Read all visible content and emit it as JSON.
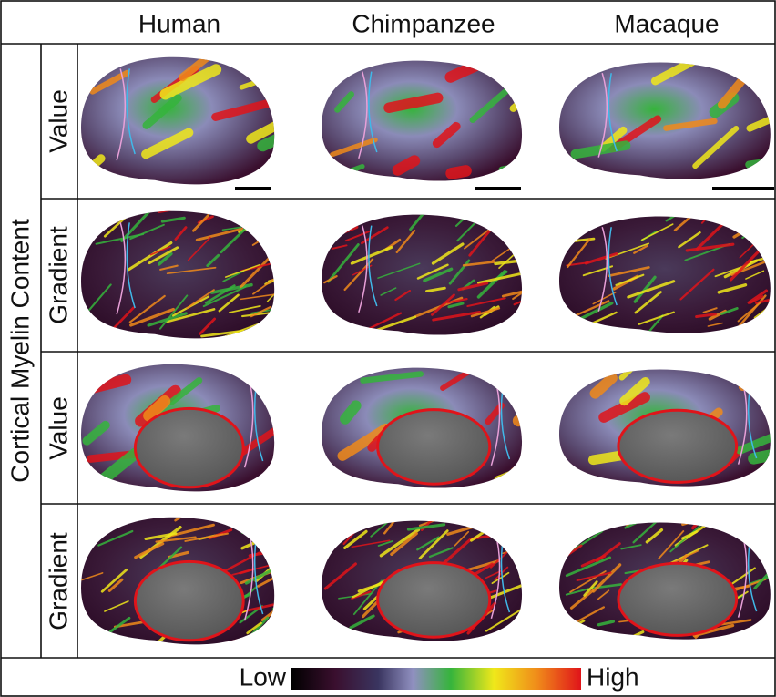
{
  "header": {
    "columns": [
      "Human",
      "Chimpanzee",
      "Macaque"
    ]
  },
  "side_label": "Cortical Myelin Content",
  "rows": [
    "Value",
    "Gradient",
    "Value",
    "Gradient"
  ],
  "colorbar": {
    "low": "Low",
    "high": "High"
  }
}
